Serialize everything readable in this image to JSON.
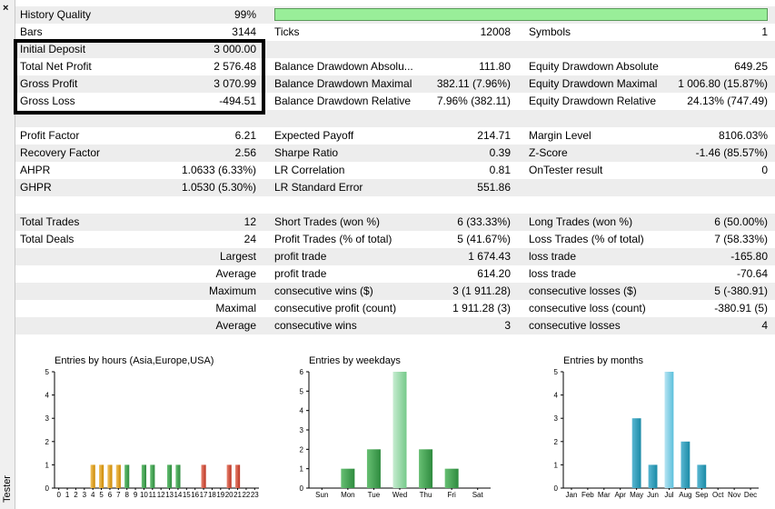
{
  "panel": {
    "label": "Tester",
    "close_symbol": "×"
  },
  "colors": {
    "quality_fill": "#99ee99",
    "row_alt": "#ededed",
    "bar_green": "#2e8b3e",
    "bar_orange": "#cc8800",
    "bar_red": "#bb3322",
    "bar_teal": "#1a8aa6"
  },
  "rows": [
    {
      "alt": true,
      "cells": [
        [
          "History Quality",
          "99%"
        ],
        [
          "",
          ""
        ],
        [
          "",
          ""
        ]
      ],
      "quality_bar": true
    },
    {
      "alt": false,
      "cells": [
        [
          "Bars",
          "3144"
        ],
        [
          "Ticks",
          "12008"
        ],
        [
          "Symbols",
          "1"
        ]
      ]
    },
    {
      "alt": true,
      "cells": [
        [
          "Initial Deposit",
          "3 000.00"
        ],
        [
          "",
          ""
        ],
        [
          "",
          ""
        ]
      ]
    },
    {
      "alt": false,
      "cells": [
        [
          "Total Net Profit",
          "2 576.48"
        ],
        [
          "Balance Drawdown Absolu...",
          "111.80"
        ],
        [
          "Equity Drawdown Absolute",
          "649.25"
        ]
      ]
    },
    {
      "alt": true,
      "cells": [
        [
          "Gross Profit",
          "3 070.99"
        ],
        [
          "Balance Drawdown Maximal",
          "382.11 (7.96%)"
        ],
        [
          "Equity Drawdown Maximal",
          "1 006.80 (15.87%)"
        ]
      ]
    },
    {
      "alt": false,
      "cells": [
        [
          "Gross Loss",
          "-494.51"
        ],
        [
          "Balance Drawdown Relative",
          "7.96% (382.11)"
        ],
        [
          "Equity Drawdown Relative",
          "24.13% (747.49)"
        ]
      ]
    },
    {
      "alt": true,
      "cells": [
        [
          "",
          ""
        ],
        [
          "",
          ""
        ],
        [
          "",
          ""
        ]
      ]
    },
    {
      "alt": false,
      "cells": [
        [
          "Profit Factor",
          "6.21"
        ],
        [
          "Expected Payoff",
          "214.71"
        ],
        [
          "Margin Level",
          "8106.03%"
        ]
      ]
    },
    {
      "alt": true,
      "cells": [
        [
          "Recovery Factor",
          "2.56"
        ],
        [
          "Sharpe Ratio",
          "0.39"
        ],
        [
          "Z-Score",
          "-1.46 (85.57%)"
        ]
      ]
    },
    {
      "alt": false,
      "cells": [
        [
          "AHPR",
          "1.0633 (6.33%)"
        ],
        [
          "LR Correlation",
          "0.81"
        ],
        [
          "OnTester result",
          "0"
        ]
      ]
    },
    {
      "alt": true,
      "cells": [
        [
          "GHPR",
          "1.0530 (5.30%)"
        ],
        [
          "LR Standard Error",
          "551.86"
        ],
        [
          "",
          ""
        ]
      ]
    },
    {
      "alt": false,
      "cells": [
        [
          "",
          ""
        ],
        [
          "",
          ""
        ],
        [
          "",
          ""
        ]
      ]
    },
    {
      "alt": true,
      "cells": [
        [
          "Total Trades",
          "12"
        ],
        [
          "Short Trades (won %)",
          "6 (33.33%)"
        ],
        [
          "Long Trades (won %)",
          "6 (50.00%)"
        ]
      ]
    },
    {
      "alt": false,
      "cells": [
        [
          "Total Deals",
          "24"
        ],
        [
          "Profit Trades (% of total)",
          "5 (41.67%)"
        ],
        [
          "Loss Trades (% of total)",
          "7 (58.33%)"
        ]
      ]
    },
    {
      "alt": true,
      "right1": true,
      "cells": [
        [
          "Largest",
          ""
        ],
        [
          "profit trade",
          "1 674.43"
        ],
        [
          "loss trade",
          "-165.80"
        ]
      ]
    },
    {
      "alt": false,
      "right1": true,
      "cells": [
        [
          "Average",
          ""
        ],
        [
          "profit trade",
          "614.20"
        ],
        [
          "loss trade",
          "-70.64"
        ]
      ]
    },
    {
      "alt": true,
      "right1": true,
      "cells": [
        [
          "Maximum",
          ""
        ],
        [
          "consecutive wins ($)",
          "3 (1 911.28)"
        ],
        [
          "consecutive losses ($)",
          "5 (-380.91)"
        ]
      ]
    },
    {
      "alt": false,
      "right1": true,
      "cells": [
        [
          "Maximal",
          ""
        ],
        [
          "consecutive profit (count)",
          "1 911.28 (3)"
        ],
        [
          "consecutive loss (count)",
          "-380.91 (5)"
        ]
      ]
    },
    {
      "alt": true,
      "right1": true,
      "cells": [
        [
          "Average",
          ""
        ],
        [
          "consecutive wins",
          "3"
        ],
        [
          "consecutive losses",
          "4"
        ]
      ]
    },
    {
      "alt": false,
      "cells": [
        [
          "",
          ""
        ],
        [
          "",
          ""
        ],
        [
          "",
          ""
        ]
      ]
    }
  ],
  "chart_data": [
    {
      "type": "bar",
      "title": "Entries by hours (Asia,Europe,USA)",
      "categories": [
        "0",
        "1",
        "2",
        "3",
        "4",
        "5",
        "6",
        "7",
        "8",
        "9",
        "10",
        "11",
        "12",
        "13",
        "14",
        "15",
        "16",
        "17",
        "18",
        "19",
        "20",
        "21",
        "22",
        "23"
      ],
      "values": [
        0,
        0,
        0,
        0,
        1,
        1,
        1,
        1,
        1,
        0,
        1,
        1,
        0,
        1,
        1,
        0,
        0,
        1,
        0,
        0,
        1,
        1,
        0,
        0
      ],
      "bar_colors": [
        "",
        "",
        "",
        "",
        "orange",
        "orange",
        "orange",
        "orange",
        "green",
        "",
        "green",
        "green",
        "",
        "green",
        "green",
        "",
        "",
        "red",
        "",
        "",
        "red",
        "red",
        "",
        ""
      ],
      "ylim": [
        0,
        5
      ],
      "yticks": [
        "0",
        "1",
        "2",
        "3",
        "4",
        "5"
      ]
    },
    {
      "type": "bar",
      "title": "Entries by weekdays",
      "categories": [
        "Sun",
        "Mon",
        "Tue",
        "Wed",
        "Thu",
        "Fri",
        "Sat"
      ],
      "values": [
        0,
        1,
        2,
        6,
        2,
        1,
        0
      ],
      "bar_colors": [
        "green",
        "green",
        "green",
        "green-light",
        "green",
        "green",
        "green"
      ],
      "ylim": [
        0,
        6
      ],
      "yticks": [
        "0",
        "1",
        "2",
        "3",
        "4",
        "5",
        "6"
      ]
    },
    {
      "type": "bar",
      "title": "Entries by months",
      "categories": [
        "Jan",
        "Feb",
        "Mar",
        "Apr",
        "May",
        "Jun",
        "Jul",
        "Aug",
        "Sep",
        "Oct",
        "Nov",
        "Dec"
      ],
      "values": [
        0,
        0,
        0,
        0,
        3,
        1,
        5,
        2,
        1,
        0,
        0,
        0
      ],
      "bar_colors": [
        "teal",
        "teal",
        "teal",
        "teal",
        "teal",
        "teal",
        "teal-light",
        "teal",
        "teal",
        "teal",
        "teal",
        "teal"
      ],
      "ylim": [
        0,
        5
      ],
      "yticks": [
        "0",
        "1",
        "2",
        "3",
        "4",
        "5"
      ]
    }
  ]
}
